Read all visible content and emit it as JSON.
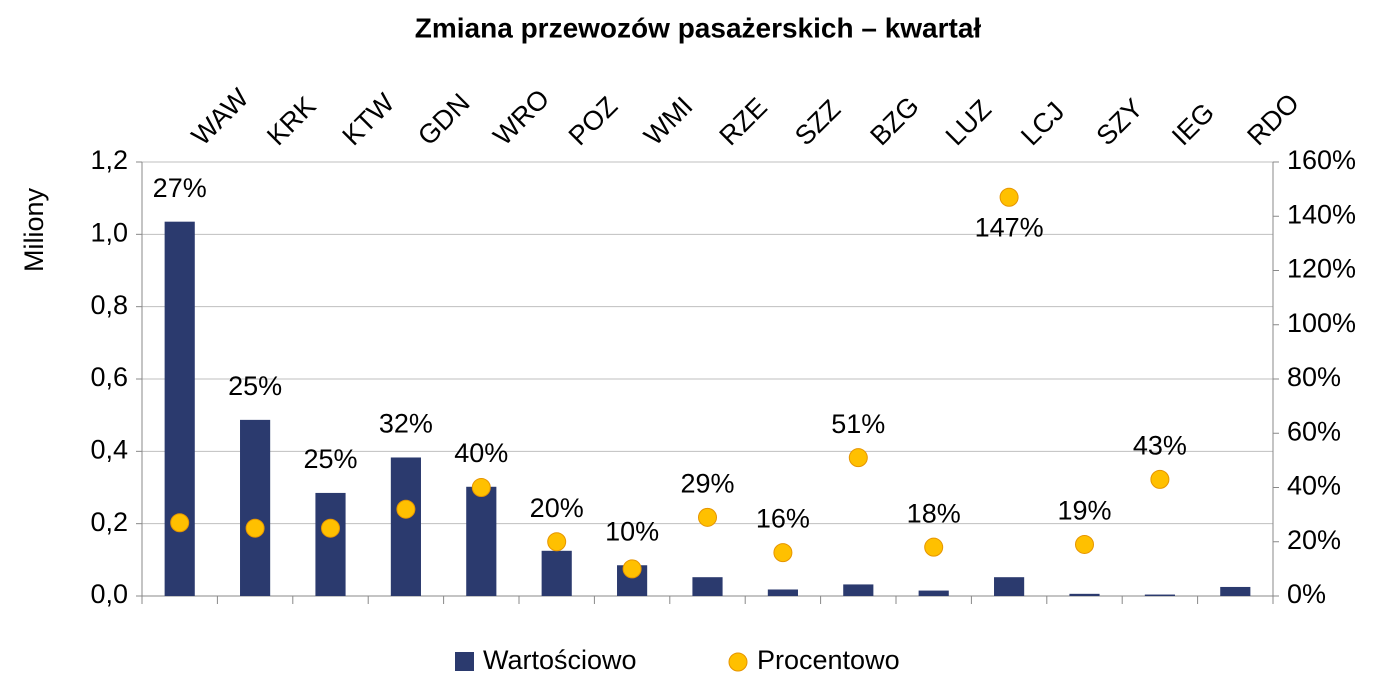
{
  "chart_data": {
    "type": "bar-scatter",
    "title": "Zmiana przewozów pasażerskich – kwartał",
    "ylabel": "Miliony",
    "categories": [
      "WAW",
      "KRK",
      "KTW",
      "GDN",
      "WRO",
      "POZ",
      "WMI",
      "RZE",
      "SZZ",
      "BZG",
      "LUZ",
      "LCJ",
      "SZY",
      "IEG",
      "RDO"
    ],
    "series": [
      {
        "name": "Wartościowo",
        "color": "#2b3a6e",
        "type": "bar",
        "values": [
          1.035,
          0.487,
          0.285,
          0.383,
          0.302,
          0.125,
          0.085,
          0.052,
          0.018,
          0.032,
          0.015,
          0.052,
          0.006,
          0.004,
          0.025
        ]
      },
      {
        "name": "Procentowo",
        "color": "#ffc000",
        "type": "scatter",
        "axis": "y2",
        "values": [
          27,
          25,
          25,
          32,
          40,
          20,
          10,
          29,
          16,
          51,
          18,
          147,
          19,
          43,
          null
        ],
        "value_labels": [
          "27%",
          "25%",
          "25%",
          "32%",
          "40%",
          "20%",
          "10%",
          "29%",
          "16%",
          "51%",
          "18%",
          "147%",
          "19%",
          "43%",
          null
        ]
      }
    ],
    "ylim": [
      0,
      1.2
    ],
    "yticks": [
      {
        "value": 0,
        "label": "0,0"
      },
      {
        "value": 0.2,
        "label": "0,2"
      },
      {
        "value": 0.4,
        "label": "0,4"
      },
      {
        "value": 0.6,
        "label": "0,6"
      },
      {
        "value": 0.8,
        "label": "0,8"
      },
      {
        "value": 1.0,
        "label": "1,0"
      },
      {
        "value": 1.2,
        "label": "1,2"
      }
    ],
    "y2lim": [
      0,
      160
    ],
    "y2ticks": [
      {
        "value": 0,
        "label": "0%"
      },
      {
        "value": 20,
        "label": "20%"
      },
      {
        "value": 40,
        "label": "40%"
      },
      {
        "value": 60,
        "label": "60%"
      },
      {
        "value": 80,
        "label": "80%"
      },
      {
        "value": 100,
        "label": "100%"
      },
      {
        "value": 120,
        "label": "120%"
      },
      {
        "value": 140,
        "label": "140%"
      },
      {
        "value": 160,
        "label": "160%"
      }
    ],
    "grid": true,
    "legend": "bottom"
  }
}
